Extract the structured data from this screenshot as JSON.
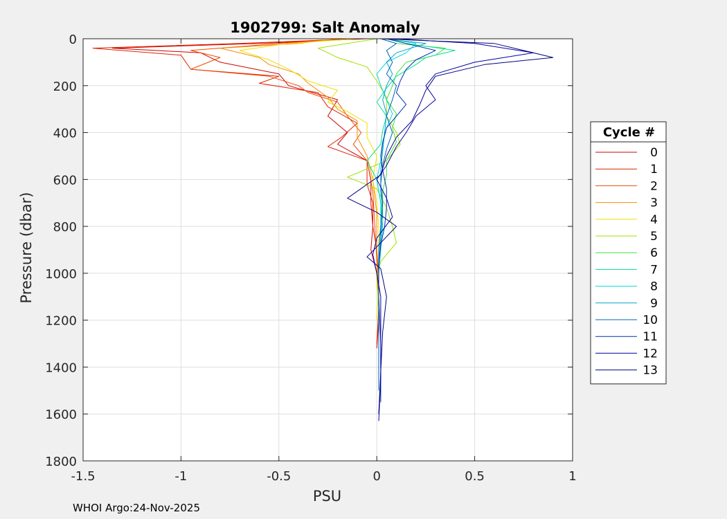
{
  "chart_data": {
    "type": "line",
    "title": "1902799: Salt Anomaly",
    "xlabel": "PSU",
    "ylabel": "Pressure (dbar)",
    "xlim": [
      -1.5,
      1
    ],
    "ylim": [
      0,
      1800
    ],
    "y_reversed": true,
    "grid": true,
    "x_ticks": [
      -1.5,
      -1,
      -0.5,
      0,
      0.5,
      1
    ],
    "x_tick_labels": [
      "-1.5",
      "-1",
      "-0.5",
      "0",
      "0.5",
      "1"
    ],
    "y_ticks": [
      0,
      200,
      400,
      600,
      800,
      1000,
      1200,
      1400,
      1600,
      1800
    ],
    "y_tick_labels": [
      "0",
      "200",
      "400",
      "600",
      "800",
      "1000",
      "1200",
      "1400",
      "1600",
      "1800"
    ],
    "legend": {
      "title": "Cycle #",
      "placement": "outside-right"
    },
    "series": [
      {
        "name": "0",
        "color": "#d00000",
        "points": [
          [
            -0.05,
            0
          ],
          [
            -0.6,
            20
          ],
          [
            -1.35,
            40
          ],
          [
            -0.9,
            60
          ],
          [
            -0.8,
            100
          ],
          [
            -0.5,
            150
          ],
          [
            -0.45,
            200
          ],
          [
            -0.2,
            260
          ],
          [
            -0.25,
            330
          ],
          [
            -0.15,
            400
          ],
          [
            -0.2,
            450
          ],
          [
            -0.05,
            520
          ],
          [
            -0.03,
            600
          ],
          [
            -0.03,
            700
          ],
          [
            -0.02,
            800
          ],
          [
            -0.03,
            900
          ],
          [
            0,
            1000
          ],
          [
            0.01,
            1100
          ],
          [
            0.01,
            1200
          ],
          [
            0,
            1320
          ]
        ]
      },
      {
        "name": "1",
        "color": "#e02000",
        "points": [
          [
            -0.1,
            0
          ],
          [
            -0.7,
            20
          ],
          [
            -1.45,
            40
          ],
          [
            -1.0,
            70
          ],
          [
            -0.95,
            130
          ],
          [
            -0.5,
            160
          ],
          [
            -0.6,
            190
          ],
          [
            -0.3,
            230
          ],
          [
            -0.25,
            290
          ],
          [
            -0.1,
            360
          ],
          [
            -0.18,
            420
          ],
          [
            -0.25,
            460
          ],
          [
            -0.05,
            520
          ],
          [
            -0.05,
            620
          ],
          [
            -0.02,
            700
          ],
          [
            -0.02,
            800
          ],
          [
            0,
            900
          ],
          [
            0.01,
            1000
          ],
          [
            0.01,
            1150
          ],
          [
            0.0,
            1300
          ]
        ]
      },
      {
        "name": "2",
        "color": "#f04a00",
        "points": [
          [
            -0.15,
            0
          ],
          [
            -0.5,
            20
          ],
          [
            -0.95,
            50
          ],
          [
            -0.8,
            80
          ],
          [
            -0.95,
            130
          ],
          [
            -0.55,
            160
          ],
          [
            -0.4,
            200
          ],
          [
            -0.35,
            230
          ],
          [
            -0.2,
            270
          ],
          [
            -0.15,
            330
          ],
          [
            -0.08,
            400
          ],
          [
            -0.12,
            450
          ],
          [
            -0.05,
            520
          ],
          [
            -0.02,
            650
          ],
          [
            -0.01,
            800
          ],
          [
            0,
            950
          ],
          [
            0.01,
            1100
          ],
          [
            0.01,
            1250
          ]
        ]
      },
      {
        "name": "3",
        "color": "#f58c00",
        "points": [
          [
            -0.2,
            0
          ],
          [
            -0.4,
            20
          ],
          [
            -0.8,
            40
          ],
          [
            -0.6,
            80
          ],
          [
            -0.55,
            110
          ],
          [
            -0.4,
            150
          ],
          [
            -0.35,
            190
          ],
          [
            -0.25,
            250
          ],
          [
            -0.2,
            300
          ],
          [
            -0.1,
            350
          ],
          [
            -0.1,
            420
          ],
          [
            -0.05,
            500
          ],
          [
            -0.02,
            600
          ],
          [
            0,
            750
          ],
          [
            0,
            900
          ],
          [
            0.01,
            1050
          ],
          [
            0.01,
            1200
          ]
        ]
      },
      {
        "name": "4",
        "color": "#f0e000",
        "points": [
          [
            -0.1,
            0
          ],
          [
            -0.45,
            20
          ],
          [
            -0.7,
            50
          ],
          [
            -0.55,
            90
          ],
          [
            -0.45,
            130
          ],
          [
            -0.35,
            180
          ],
          [
            -0.2,
            220
          ],
          [
            -0.25,
            270
          ],
          [
            -0.15,
            310
          ],
          [
            -0.05,
            360
          ],
          [
            -0.05,
            420
          ],
          [
            0,
            500
          ],
          [
            -0.02,
            600
          ],
          [
            0,
            700
          ],
          [
            0.01,
            800
          ],
          [
            0.01,
            900
          ],
          [
            0.01,
            1050
          ],
          [
            0.0,
            1200
          ]
        ]
      },
      {
        "name": "5",
        "color": "#a0e000",
        "points": [
          [
            0,
            0
          ],
          [
            -0.15,
            20
          ],
          [
            -0.3,
            40
          ],
          [
            -0.2,
            80
          ],
          [
            -0.05,
            120
          ],
          [
            0,
            180
          ],
          [
            0.05,
            250
          ],
          [
            0.05,
            330
          ],
          [
            0.1,
            400
          ],
          [
            0.12,
            450
          ],
          [
            0.05,
            520
          ],
          [
            -0.15,
            590
          ],
          [
            0,
            640
          ],
          [
            0.05,
            720
          ],
          [
            0.08,
            800
          ],
          [
            0.1,
            870
          ],
          [
            0.02,
            950
          ],
          [
            0,
            1020
          ],
          [
            0.01,
            1150
          ]
        ]
      },
      {
        "name": "6",
        "color": "#40e040",
        "points": [
          [
            0.02,
            0
          ],
          [
            0.1,
            20
          ],
          [
            0.35,
            40
          ],
          [
            0.3,
            70
          ],
          [
            0.15,
            100
          ],
          [
            0.1,
            150
          ],
          [
            0.08,
            200
          ],
          [
            0.05,
            260
          ],
          [
            0.1,
            320
          ],
          [
            0.08,
            380
          ],
          [
            0.1,
            440
          ],
          [
            0.05,
            520
          ],
          [
            0.05,
            580
          ],
          [
            0.03,
            650
          ],
          [
            0.03,
            750
          ],
          [
            0.02,
            850
          ],
          [
            0.01,
            950
          ],
          [
            0.01,
            1100
          ],
          [
            0.01,
            1300
          ]
        ]
      },
      {
        "name": "7",
        "color": "#00e090",
        "points": [
          [
            0.05,
            0
          ],
          [
            0.15,
            20
          ],
          [
            0.4,
            50
          ],
          [
            0.25,
            80
          ],
          [
            0.2,
            110
          ],
          [
            0.1,
            160
          ],
          [
            0.05,
            210
          ],
          [
            0.0,
            270
          ],
          [
            0.05,
            330
          ],
          [
            0.03,
            390
          ],
          [
            0.02,
            450
          ],
          [
            -0.05,
            520
          ],
          [
            0,
            600
          ],
          [
            0.02,
            700
          ],
          [
            0.02,
            800
          ],
          [
            0.02,
            900
          ],
          [
            0.01,
            1000
          ],
          [
            0.01,
            1200
          ],
          [
            0.01,
            1400
          ]
        ]
      },
      {
        "name": "8",
        "color": "#00d8d8",
        "points": [
          [
            0.05,
            0
          ],
          [
            0.2,
            20
          ],
          [
            0.15,
            60
          ],
          [
            0.05,
            100
          ],
          [
            0.0,
            150
          ],
          [
            0.02,
            200
          ],
          [
            0.05,
            260
          ],
          [
            0.08,
            320
          ],
          [
            0.05,
            380
          ],
          [
            0.03,
            450
          ],
          [
            0.02,
            520
          ],
          [
            0.0,
            600
          ],
          [
            0.02,
            700
          ],
          [
            0.03,
            800
          ],
          [
            0.02,
            900
          ],
          [
            0.01,
            1000
          ],
          [
            0.01,
            1150
          ],
          [
            0.01,
            1300
          ],
          [
            0.01,
            1480
          ]
        ]
      },
      {
        "name": "9",
        "color": "#00a0d0",
        "points": [
          [
            0.03,
            0
          ],
          [
            0.25,
            20
          ],
          [
            0.1,
            60
          ],
          [
            0.05,
            100
          ],
          [
            0.08,
            150
          ],
          [
            0.05,
            200
          ],
          [
            0.03,
            260
          ],
          [
            0.05,
            320
          ],
          [
            0.04,
            400
          ],
          [
            0.03,
            480
          ],
          [
            0.02,
            560
          ],
          [
            0.02,
            650
          ],
          [
            0.03,
            750
          ],
          [
            0.02,
            850
          ],
          [
            0.01,
            950
          ],
          [
            0.01,
            1100
          ],
          [
            0.01,
            1250
          ],
          [
            0.01,
            1450
          ]
        ]
      },
      {
        "name": "10",
        "color": "#0060c0",
        "points": [
          [
            0.02,
            0
          ],
          [
            0.1,
            20
          ],
          [
            0.05,
            50
          ],
          [
            0.08,
            100
          ],
          [
            0.05,
            150
          ],
          [
            0.1,
            200
          ],
          [
            0.08,
            260
          ],
          [
            0.05,
            330
          ],
          [
            0.08,
            400
          ],
          [
            0.05,
            470
          ],
          [
            0.03,
            540
          ],
          [
            0.02,
            620
          ],
          [
            0.03,
            700
          ],
          [
            0.02,
            800
          ],
          [
            0.01,
            900
          ],
          [
            0.01,
            1000
          ],
          [
            0.01,
            1150
          ],
          [
            0.01,
            1300
          ],
          [
            0.01,
            1500
          ]
        ]
      },
      {
        "name": "11",
        "color": "#0030b0",
        "points": [
          [
            0.05,
            0
          ],
          [
            0.15,
            20
          ],
          [
            0.3,
            50
          ],
          [
            0.2,
            90
          ],
          [
            0.15,
            130
          ],
          [
            0.12,
            180
          ],
          [
            0.1,
            230
          ],
          [
            0.15,
            280
          ],
          [
            0.1,
            330
          ],
          [
            0.05,
            380
          ],
          [
            0.03,
            440
          ],
          [
            0.02,
            500
          ],
          [
            0.03,
            560
          ],
          [
            0.05,
            640
          ],
          [
            0.05,
            720
          ],
          [
            0.04,
            800
          ],
          [
            0.02,
            880
          ],
          [
            0.01,
            960
          ],
          [
            0.01,
            1100
          ],
          [
            0.02,
            1300
          ],
          [
            0.02,
            1550
          ]
        ]
      },
      {
        "name": "12",
        "color": "#0000a0",
        "points": [
          [
            0.1,
            0
          ],
          [
            0.5,
            20
          ],
          [
            0.8,
            60
          ],
          [
            0.5,
            100
          ],
          [
            0.3,
            150
          ],
          [
            0.25,
            200
          ],
          [
            0.3,
            260
          ],
          [
            0.2,
            330
          ],
          [
            0.15,
            400
          ],
          [
            0.1,
            460
          ],
          [
            0.05,
            540
          ],
          [
            0.0,
            600
          ],
          [
            0.05,
            680
          ],
          [
            0.08,
            760
          ],
          [
            0.0,
            850
          ],
          [
            -0.02,
            920
          ],
          [
            0.0,
            1000
          ],
          [
            0.02,
            1100
          ],
          [
            0.02,
            1250
          ],
          [
            0.02,
            1450
          ],
          [
            0.01,
            1630
          ]
        ]
      },
      {
        "name": "13",
        "color": "#000080",
        "points": [
          [
            0.02,
            0
          ],
          [
            0.6,
            20
          ],
          [
            0.9,
            80
          ],
          [
            0.55,
            110
          ],
          [
            0.3,
            160
          ],
          [
            0.25,
            220
          ],
          [
            0.22,
            280
          ],
          [
            0.18,
            350
          ],
          [
            0.1,
            420
          ],
          [
            0.05,
            500
          ],
          [
            0.02,
            580
          ],
          [
            -0.15,
            680
          ],
          [
            0.0,
            740
          ],
          [
            0.1,
            800
          ],
          [
            0.02,
            870
          ],
          [
            -0.05,
            930
          ],
          [
            0.02,
            980
          ],
          [
            0.05,
            1100
          ],
          [
            0.03,
            1250
          ],
          [
            0.02,
            1420
          ],
          [
            0.01,
            1600
          ]
        ]
      }
    ]
  },
  "footer": "WHOI Argo:24-Nov-2025"
}
